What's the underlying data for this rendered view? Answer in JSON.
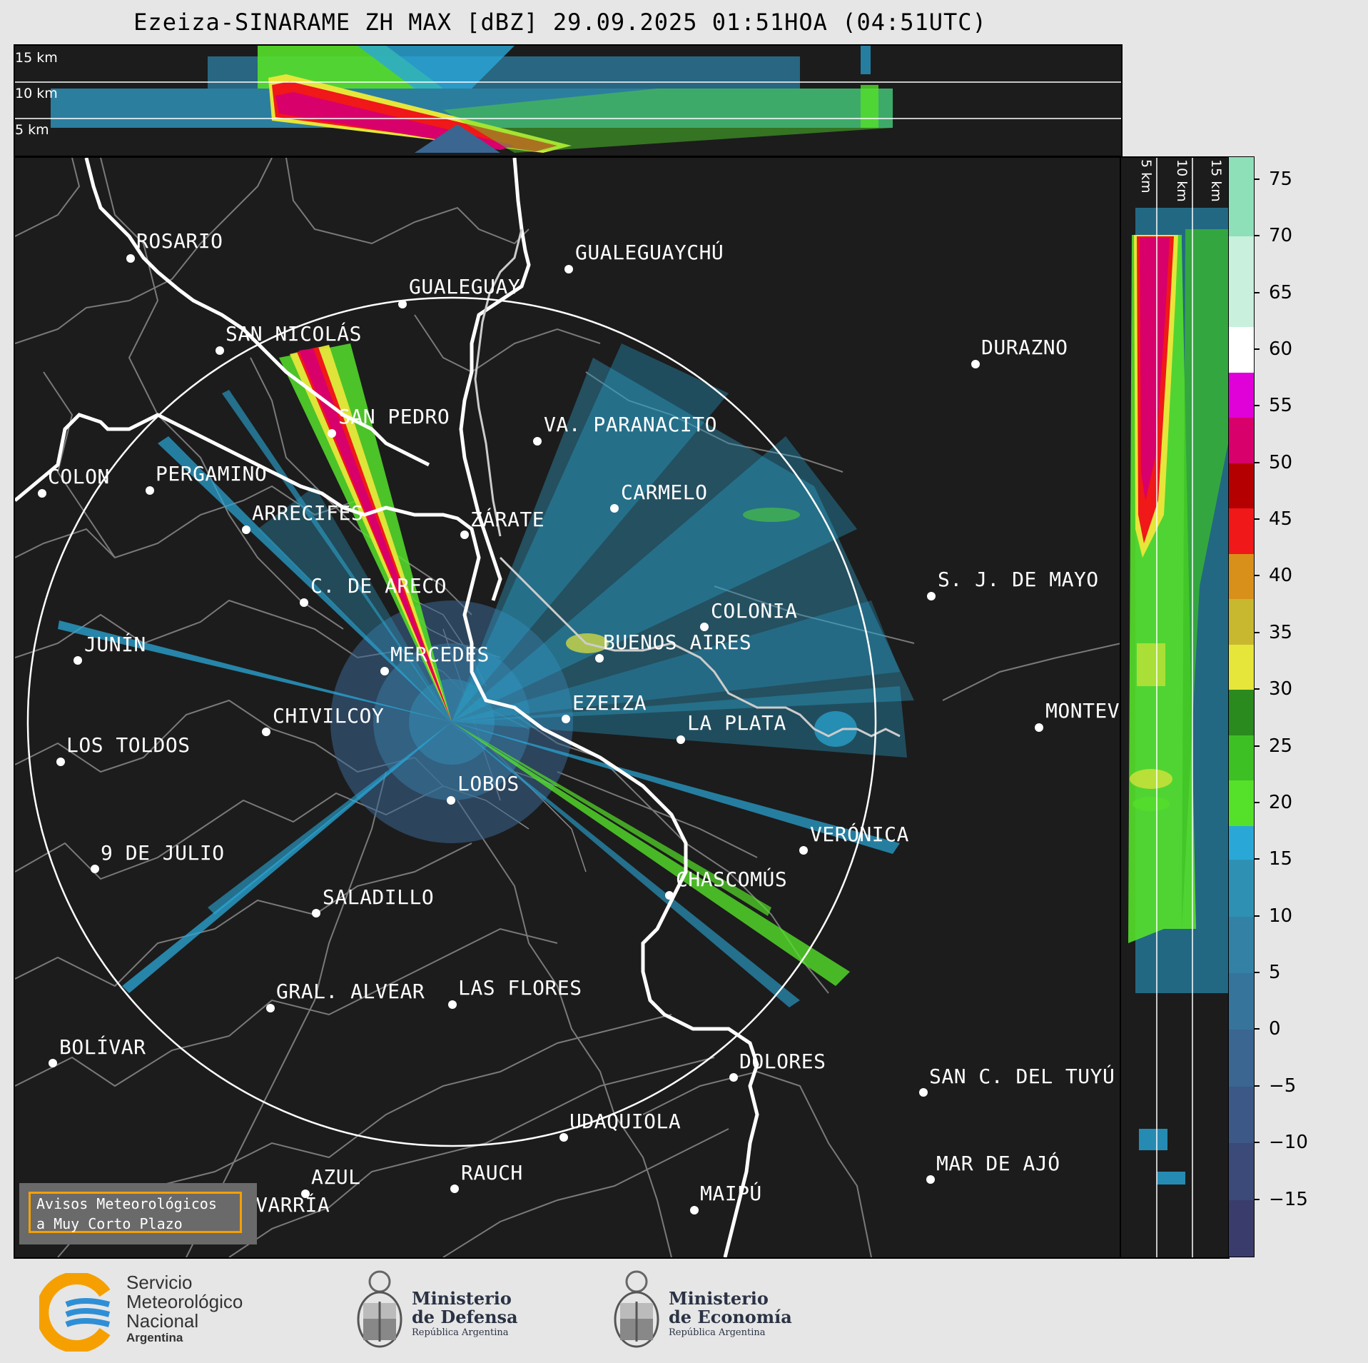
{
  "title": "Ezeiza-SINARAME ZH MAX [dBZ] 29.09.2025 01:51HOA (04:51UTC)",
  "cross_section_top": {
    "labels": [
      "15 km",
      "10 km",
      "5 km"
    ]
  },
  "cross_section_right": {
    "labels": [
      "5 km",
      "10 km",
      "15 km"
    ]
  },
  "colorbar": {
    "ticks": [
      "75",
      "70",
      "65",
      "60",
      "55",
      "50",
      "45",
      "40",
      "35",
      "30",
      "25",
      "20",
      "15",
      "10",
      "5",
      "0",
      "−5",
      "−10",
      "−15"
    ],
    "stops": [
      {
        "from": -20,
        "color": "#3a3d6b"
      },
      {
        "from": -15,
        "color": "#3c4a7a"
      },
      {
        "from": -10,
        "color": "#3c5887"
      },
      {
        "from": -5,
        "color": "#3a6691"
      },
      {
        "from": 0,
        "color": "#37749b"
      },
      {
        "from": 5,
        "color": "#3382a6"
      },
      {
        "from": 10,
        "color": "#2e91b4"
      },
      {
        "from": 15,
        "color": "#29a8d8"
      },
      {
        "from": 18,
        "color": "#55e02a"
      },
      {
        "from": 22,
        "color": "#3cc023"
      },
      {
        "from": 26,
        "color": "#2a8a1e"
      },
      {
        "from": 30,
        "color": "#e6e63a"
      },
      {
        "from": 34,
        "color": "#c8b830"
      },
      {
        "from": 38,
        "color": "#d9901a"
      },
      {
        "from": 42,
        "color": "#f01818"
      },
      {
        "from": 46,
        "color": "#b40000"
      },
      {
        "from": 50,
        "color": "#d8006a"
      },
      {
        "from": 54,
        "color": "#e000d8"
      },
      {
        "from": 58,
        "color": "#ffffff"
      },
      {
        "from": 62,
        "color": "#c8f0dc"
      },
      {
        "from": 70,
        "color": "#8ee0b8"
      }
    ]
  },
  "cities": [
    {
      "name": "ROSARIO"
    },
    {
      "name": "GUALEGUAYCHÚ"
    },
    {
      "name": "GUALEGUAY"
    },
    {
      "name": "SAN NICOLÁS"
    },
    {
      "name": "DURAZNO"
    },
    {
      "name": "SAN PEDRO"
    },
    {
      "name": "VA. PARANACITO"
    },
    {
      "name": "COLON"
    },
    {
      "name": "PERGAMINO"
    },
    {
      "name": "CARMELO"
    },
    {
      "name": "ARRECIFES"
    },
    {
      "name": "ZÁRATE"
    },
    {
      "name": "S. J. DE MAYO"
    },
    {
      "name": "C. DE ARECO"
    },
    {
      "name": "COLONIA"
    },
    {
      "name": "JUNÍN"
    },
    {
      "name": "BUENOS AIRES"
    },
    {
      "name": "MERCEDES"
    },
    {
      "name": "EZEIZA"
    },
    {
      "name": "MONTEVIDEO"
    },
    {
      "name": "CHIVILCOY"
    },
    {
      "name": "LA PLATA"
    },
    {
      "name": "LOS TOLDOS"
    },
    {
      "name": "LOBOS"
    },
    {
      "name": "VERÓNICA"
    },
    {
      "name": "9 DE JULIO"
    },
    {
      "name": "CHASCOMÚS"
    },
    {
      "name": "SALADILLO"
    },
    {
      "name": "GRAL. ALVEAR"
    },
    {
      "name": "LAS FLORES"
    },
    {
      "name": "BOLÍVAR"
    },
    {
      "name": "DOLORES"
    },
    {
      "name": "SAN C. DEL TUYÚ"
    },
    {
      "name": "UDAQUIOLA"
    },
    {
      "name": "MAR DE AJÓ"
    },
    {
      "name": "AZUL"
    },
    {
      "name": "RAUCH"
    },
    {
      "name": "OLAVARRÍA"
    },
    {
      "name": "MAIPÚ"
    }
  ],
  "warning_box": {
    "line1": "Avisos Meteorológicos",
    "line2": "a Muy Corto Plazo"
  },
  "logos": {
    "smn": {
      "line1": "Servicio",
      "line2": "Meteorológico",
      "line3": "Nacional",
      "line4": "Argentina"
    },
    "defensa": {
      "line1": "Ministerio",
      "line2": "de Defensa",
      "line3": "República Argentina"
    },
    "economia": {
      "line1": "Ministerio",
      "line2": "de Economía",
      "line3": "República Argentina"
    }
  },
  "colors": {
    "background": "#1c1c1c",
    "page": "#e6e6e6",
    "coast": "#ffffff",
    "borders": "#7a7a7a",
    "range_ring": "#ffffff"
  }
}
